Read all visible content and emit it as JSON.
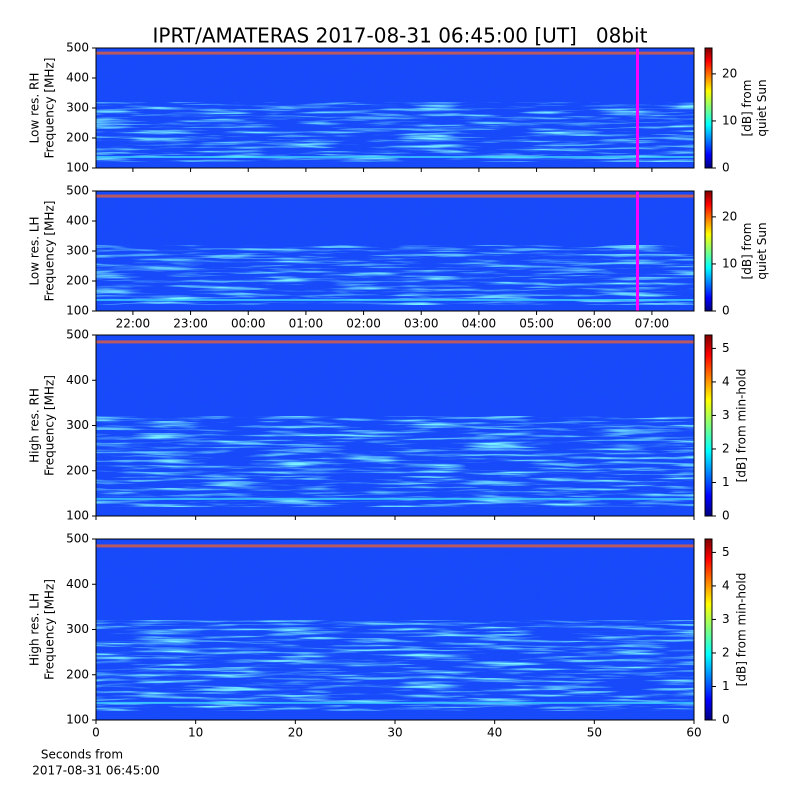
{
  "title": "IPRT/AMATERAS 2017-08-31 06:45:00 [UT]   08bit",
  "chart_data": [
    {
      "type": "heatmap",
      "ylabel": [
        "Low res. RH",
        "Frequency [MHz]"
      ],
      "xlim": [
        21.36,
        31.73
      ],
      "ylim": [
        100,
        500
      ],
      "yticks": [
        100,
        200,
        300,
        400,
        500
      ],
      "marker": {
        "x": 30.75,
        "color": "#ff00ff"
      },
      "colorbar": {
        "label": [
          "[dB] from",
          "quiet Sun"
        ],
        "lim": [
          0,
          25.5
        ],
        "ticks": [
          0,
          10,
          20
        ]
      }
    },
    {
      "type": "heatmap",
      "ylabel": [
        "Low res. LH",
        "Frequency [MHz]"
      ],
      "xlim": [
        21.36,
        31.73
      ],
      "ylim": [
        100,
        500
      ],
      "yticks": [
        100,
        200,
        300,
        400,
        500
      ],
      "xticks": [
        {
          "value": 22,
          "label": "22:00"
        },
        {
          "value": 23,
          "label": "23:00"
        },
        {
          "value": 24,
          "label": "00:00"
        },
        {
          "value": 25,
          "label": "01:00"
        },
        {
          "value": 26,
          "label": "02:00"
        },
        {
          "value": 27,
          "label": "03:00"
        },
        {
          "value": 28,
          "label": "04:00"
        },
        {
          "value": 29,
          "label": "05:00"
        },
        {
          "value": 30,
          "label": "06:00"
        },
        {
          "value": 31,
          "label": "07:00"
        }
      ],
      "marker": {
        "x": 30.75,
        "color": "#ff00ff"
      },
      "colorbar": {
        "label": [
          "[dB] from",
          "quiet Sun"
        ],
        "lim": [
          0,
          25.5
        ],
        "ticks": [
          0,
          10,
          20
        ]
      }
    },
    {
      "type": "heatmap",
      "ylabel": [
        "High res. RH",
        "Frequency [MHz]"
      ],
      "xlim": [
        0,
        60
      ],
      "ylim": [
        100,
        500
      ],
      "yticks": [
        100,
        200,
        300,
        400,
        500
      ],
      "colorbar": {
        "label": [
          "[dB] from min-hold"
        ],
        "lim": [
          0,
          5.4
        ],
        "ticks": [
          0,
          1,
          2,
          3,
          4,
          5
        ]
      }
    },
    {
      "type": "heatmap",
      "ylabel": [
        "High res. LH",
        "Frequency [MHz]"
      ],
      "xlim": [
        0,
        60
      ],
      "ylim": [
        100,
        500
      ],
      "yticks": [
        100,
        200,
        300,
        400,
        500
      ],
      "xticks": [
        0,
        10,
        20,
        30,
        40,
        50,
        60
      ],
      "xlabel": [
        "Seconds from",
        "2017-08-31 06:45:00"
      ],
      "colorbar": {
        "label": [
          "[dB] from min-hold"
        ],
        "lim": [
          0,
          5.4
        ],
        "ticks": [
          0,
          1,
          2,
          3,
          4,
          5
        ]
      }
    }
  ]
}
